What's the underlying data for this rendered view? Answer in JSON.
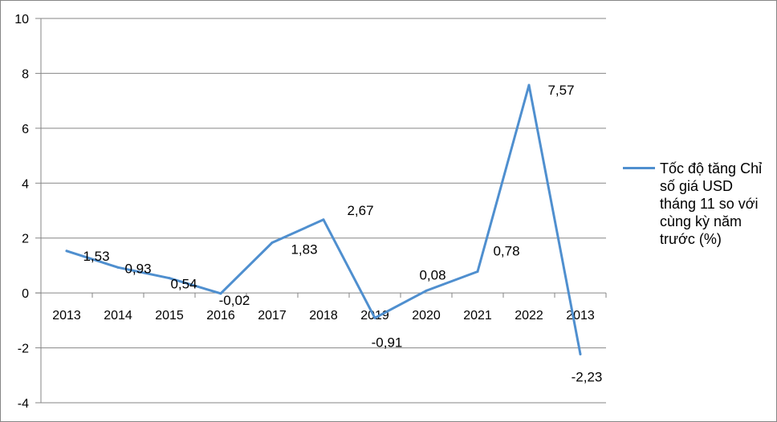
{
  "chart_data": {
    "type": "line",
    "categories": [
      "2013",
      "2014",
      "2015",
      "2016",
      "2017",
      "2018",
      "2019",
      "2020",
      "2021",
      "2022",
      "2013"
    ],
    "series": [
      {
        "name": "Tốc độ tăng Chỉ số giá USD tháng 11 so với cùng kỳ năm trước (%)",
        "values": [
          1.53,
          0.93,
          0.54,
          -0.02,
          1.83,
          2.67,
          -0.91,
          0.08,
          0.78,
          7.57,
          -2.23
        ],
        "labels": [
          "1,53",
          "0,93",
          "0,54",
          "-0,02",
          "1,83",
          "2,67",
          "-0,91",
          "0,08",
          "0,78",
          "7,57",
          "-2,23"
        ],
        "color": "#4f8fcf"
      }
    ],
    "y_ticks": [
      -4,
      -2,
      0,
      2,
      4,
      6,
      8,
      10
    ],
    "ylim": [
      -4,
      10
    ],
    "grid": true,
    "legend_position": "right",
    "gridline_color": "#868686"
  },
  "legend": {
    "label": "Tốc độ tăng Chỉ số giá USD tháng 11 so với cùng kỳ năm trước (%)"
  }
}
